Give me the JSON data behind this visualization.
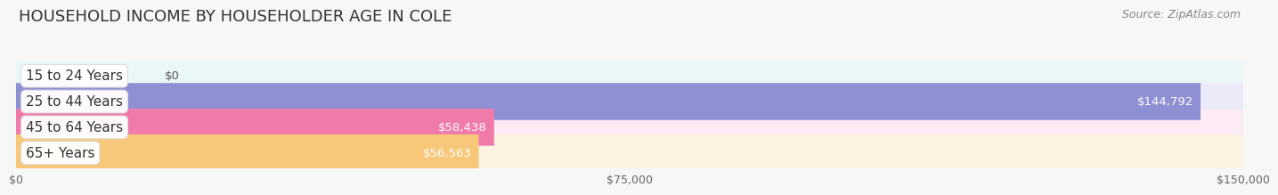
{
  "title": "HOUSEHOLD INCOME BY HOUSEHOLDER AGE IN COLE",
  "source": "Source: ZipAtlas.com",
  "categories": [
    "15 to 24 Years",
    "25 to 44 Years",
    "45 to 64 Years",
    "65+ Years"
  ],
  "values": [
    0,
    144792,
    58438,
    56563
  ],
  "bar_colors": [
    "#6dcece",
    "#8f8fd4",
    "#f07aaa",
    "#f7c87a"
  ],
  "bar_bg_colors": [
    "#eaf7f7",
    "#eaeaf8",
    "#fceaf4",
    "#fdf3e3"
  ],
  "value_labels": [
    "$0",
    "$144,792",
    "$58,438",
    "$56,563"
  ],
  "xlabel_ticks": [
    0,
    75000,
    150000
  ],
  "xlabel_labels": [
    "$0",
    "$75,000",
    "$150,000"
  ],
  "xlim": [
    0,
    150000
  ],
  "background_color": "#f7f7f7",
  "title_fontsize": 13,
  "source_fontsize": 9,
  "label_fontsize": 11,
  "value_fontsize": 9.5,
  "tick_fontsize": 9
}
